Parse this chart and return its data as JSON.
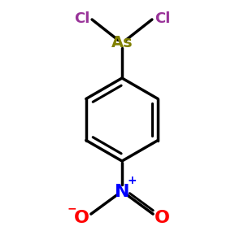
{
  "bg_color": "#ffffff",
  "bond_color": "#000000",
  "bond_lw": 2.5,
  "As_color": "#808000",
  "Cl_color": "#993399",
  "N_color": "#0000ff",
  "O_color": "#ff0000",
  "plus_color": "#0000ff",
  "minus_color": "#ff0000",
  "As_label": "As",
  "Cl_label": "Cl",
  "N_label": "N",
  "O_label": "O",
  "As_fontsize": 14,
  "Cl_fontsize": 13,
  "N_fontsize": 16,
  "O_fontsize": 16,
  "charge_fontsize": 10,
  "fig_width": 3.0,
  "fig_height": 3.0,
  "dpi": 100
}
